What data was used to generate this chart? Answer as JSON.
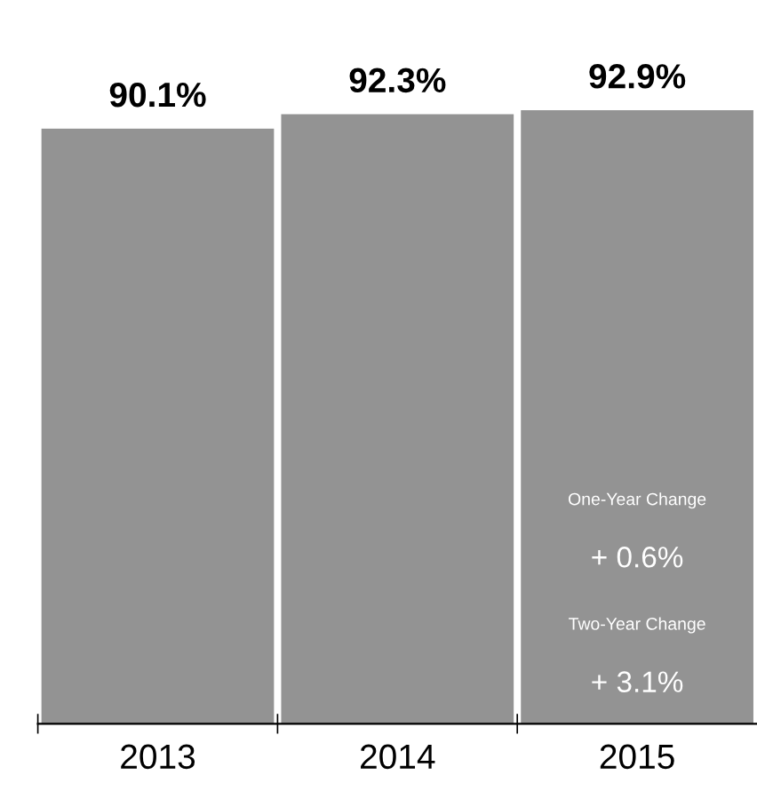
{
  "chart_data": {
    "type": "bar",
    "categories": [
      "2013",
      "2014",
      "2015"
    ],
    "values": [
      90.1,
      92.3,
      92.9
    ],
    "value_labels": [
      "90.1%",
      "92.3%",
      "92.9%"
    ],
    "color": "#939393",
    "annotations": [
      "One-Year Change",
      "+ 0.6%",
      "Two-Year Change",
      "+ 3.1%"
    ],
    "grid": false,
    "legend": false
  }
}
